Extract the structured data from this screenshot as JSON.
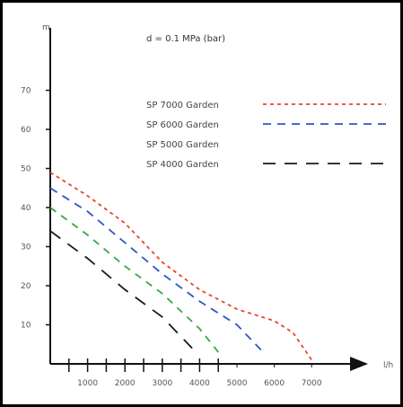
{
  "chart_data": {
    "type": "line",
    "annotation": "d = 0.1 MPa (bar)",
    "ylabel": "m",
    "xlabel": "l/h",
    "xlim": [
      0,
      8000
    ],
    "ylim": [
      0,
      80
    ],
    "x_ticks": [
      1000,
      2000,
      3000,
      4000,
      5000,
      6000,
      7000
    ],
    "y_ticks": [
      10,
      20,
      30,
      40,
      50,
      60,
      70
    ],
    "grid": false,
    "legend_position": "top-right",
    "series": [
      {
        "name": "SP 7000 Garden",
        "color": "#e8452c",
        "dash": "4 4",
        "points": [
          [
            0,
            49
          ],
          [
            1000,
            43
          ],
          [
            2000,
            36
          ],
          [
            3000,
            26
          ],
          [
            4000,
            19
          ],
          [
            5000,
            14
          ],
          [
            6000,
            11
          ],
          [
            6500,
            8
          ],
          [
            7000,
            1
          ]
        ]
      },
      {
        "name": "SP 6000 Garden",
        "color": "#2f56c8",
        "dash": "9 7",
        "points": [
          [
            0,
            45
          ],
          [
            1000,
            39
          ],
          [
            2000,
            31
          ],
          [
            3000,
            23
          ],
          [
            4000,
            16
          ],
          [
            5000,
            10
          ],
          [
            5700,
            3
          ]
        ]
      },
      {
        "name": "SP 5000 Garden",
        "color": "#3aa843",
        "dash": "8 7",
        "points": [
          [
            0,
            40
          ],
          [
            1000,
            33
          ],
          [
            2000,
            25
          ],
          [
            3000,
            18
          ],
          [
            4000,
            9
          ],
          [
            4500,
            3
          ]
        ]
      },
      {
        "name": "SP 4000 Garden",
        "color": "#1a1a1a",
        "dash": "14 10",
        "points": [
          [
            0,
            34
          ],
          [
            1000,
            27
          ],
          [
            2000,
            19
          ],
          [
            3000,
            12
          ],
          [
            3800,
            4
          ]
        ]
      }
    ]
  }
}
